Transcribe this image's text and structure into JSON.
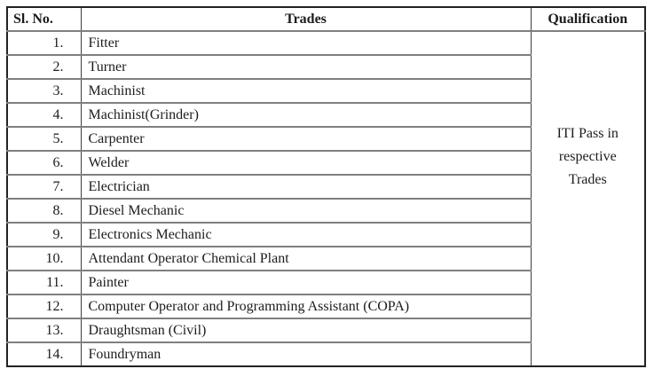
{
  "table": {
    "headers": {
      "sl_no": "Sl. No.",
      "trades": "Trades",
      "qualification": "Qualification"
    },
    "rows": [
      {
        "sl_no": "1.",
        "trade": "Fitter"
      },
      {
        "sl_no": "2.",
        "trade": "Turner"
      },
      {
        "sl_no": "3.",
        "trade": "Machinist"
      },
      {
        "sl_no": "4.",
        "trade": "Machinist(Grinder)"
      },
      {
        "sl_no": "5.",
        "trade": "Carpenter"
      },
      {
        "sl_no": "6.",
        "trade": "Welder"
      },
      {
        "sl_no": "7.",
        "trade": "Electrician"
      },
      {
        "sl_no": "8.",
        "trade": "Diesel Mechanic"
      },
      {
        "sl_no": "9.",
        "trade": "Electronics Mechanic"
      },
      {
        "sl_no": "10.",
        "trade": "Attendant Operator Chemical Plant"
      },
      {
        "sl_no": "11.",
        "trade": "Painter"
      },
      {
        "sl_no": "12.",
        "trade": "Computer Operator and Programming Assistant (COPA)"
      },
      {
        "sl_no": "13.",
        "trade": "Draughtsman (Civil)"
      },
      {
        "sl_no": "14.",
        "trade": "Foundryman"
      }
    ],
    "qualification_cell": {
      "lines": [
        "ITI Pass in",
        "respective",
        "Trades"
      ]
    }
  },
  "colors": {
    "text": "#1c1c1c",
    "outer_border": "#222222",
    "vertical_lines": "#3f3f3f",
    "horizontal_lines": "#7f7f7f",
    "background": "#ffffff"
  }
}
